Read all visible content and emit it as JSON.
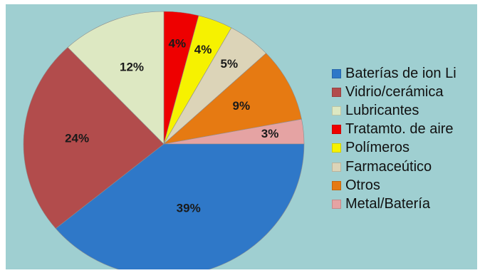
{
  "chart_data": {
    "type": "pie",
    "title": "",
    "start_angle_deg": 270,
    "direction": "clockwise",
    "label_suffix": "%",
    "slices": [
      {
        "label": "Tratamto. de aire",
        "value": 4,
        "color": "#ee0000"
      },
      {
        "label": "Polímeros",
        "value": 4,
        "color": "#f6f200"
      },
      {
        "label": "Farmaceútico",
        "value": 5,
        "color": "#dcd4b8"
      },
      {
        "label": "Otros",
        "value": 9,
        "color": "#e67a12"
      },
      {
        "label": "Metal/Batería",
        "value": 3,
        "color": "#e5a3a3"
      },
      {
        "label": "Baterías de ion Li",
        "value": 39,
        "color": "#2f78c8"
      },
      {
        "label": "Vidrio/cerámica",
        "value": 24,
        "color": "#b24c4c"
      },
      {
        "label": "Lubricantes",
        "value": 12,
        "color": "#dde8c2"
      }
    ],
    "legend": {
      "position": "right",
      "entries": [
        {
          "label": "Baterías de ion Li",
          "color": "#2f78c8"
        },
        {
          "label": "Vidrio/cerámica",
          "color": "#b24c4c"
        },
        {
          "label": "Lubricantes",
          "color": "#dde8c2"
        },
        {
          "label": "Tratamto. de aire",
          "color": "#ee0000"
        },
        {
          "label": "Polímeros",
          "color": "#f6f200"
        },
        {
          "label": "Farmaceútico",
          "color": "#dcd4b8"
        },
        {
          "label": "Otros",
          "color": "#e67a12"
        },
        {
          "label": "Metal/Batería",
          "color": "#e5a3a3"
        }
      ]
    },
    "background_color": "#9fcfd1"
  }
}
